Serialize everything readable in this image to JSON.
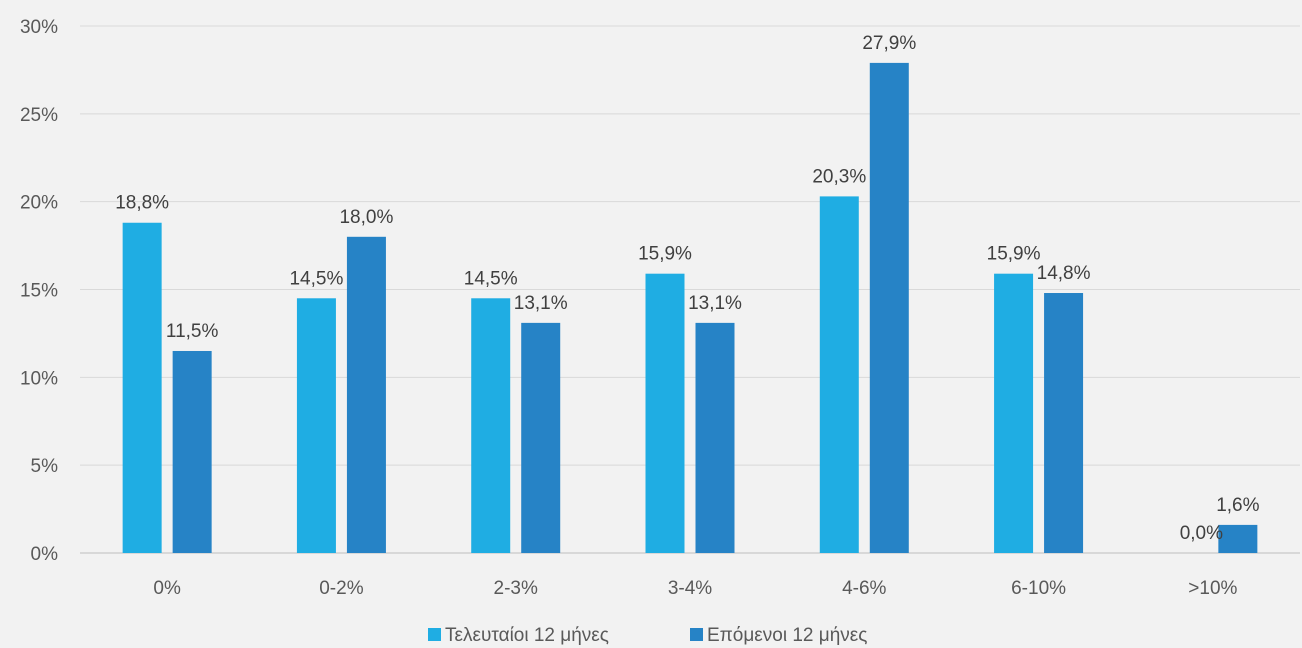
{
  "chart_data": {
    "type": "bar",
    "title": "",
    "xlabel": "",
    "ylabel": "",
    "categories": [
      "0%",
      "0-2%",
      "2-3%",
      "3-4%",
      "4-6%",
      "6-10%",
      ">10%"
    ],
    "series": [
      {
        "name": "Τελευταίοι 12 μήνες",
        "color": "#1fade3",
        "values": [
          18.8,
          14.5,
          14.5,
          15.9,
          20.3,
          15.9,
          0.0
        ],
        "labels": [
          "18,8%",
          "14,5%",
          "14,5%",
          "15,9%",
          "20,3%",
          "15,9%",
          "0,0%"
        ]
      },
      {
        "name": "Επόμενοι 12 μήνες",
        "color": "#2683c6",
        "values": [
          11.5,
          18.0,
          13.1,
          13.1,
          27.9,
          14.8,
          1.6
        ],
        "labels": [
          "11,5%",
          "18,0%",
          "13,1%",
          "13,1%",
          "27,9%",
          "14,8%",
          "1,6%"
        ]
      }
    ],
    "ylim": [
      0,
      30
    ],
    "yticks": [
      {
        "value": 0,
        "label": "0%"
      },
      {
        "value": 5,
        "label": "5%"
      },
      {
        "value": 10,
        "label": "10%"
      },
      {
        "value": 15,
        "label": "15%"
      },
      {
        "value": 20,
        "label": "20%"
      },
      {
        "value": 25,
        "label": "25%"
      },
      {
        "value": 30,
        "label": "30%"
      }
    ],
    "grid": true,
    "legend": "bottom-center",
    "background": "#f2f2f2",
    "gridline_color": "#d9d9d9"
  }
}
